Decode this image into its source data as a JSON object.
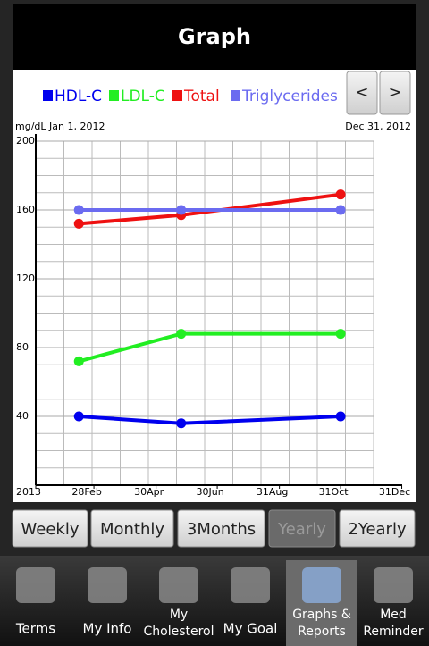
{
  "header": {
    "title": "Graph"
  },
  "nav_buttons": [
    "<",
    ">"
  ],
  "chart_data": {
    "type": "line",
    "y_label": "mg/dL",
    "start_label": "Jan 1, 2012",
    "end_label": "Dec 31, 2012",
    "x": [
      43,
      145,
      304
    ],
    "xlim": [
      0,
      365
    ],
    "xticks": [
      {
        "value": 0,
        "label": "2013"
      },
      {
        "value": 58,
        "label": "28Feb"
      },
      {
        "value": 120,
        "label": "30Apr"
      },
      {
        "value": 181,
        "label": "30Jun"
      },
      {
        "value": 243,
        "label": "31Aug"
      },
      {
        "value": 304,
        "label": "31Oct"
      },
      {
        "value": 365,
        "label": "31Dec"
      }
    ],
    "ylim": [
      0,
      200
    ],
    "yticks": [
      40,
      80,
      120,
      160,
      200
    ],
    "grid": true,
    "legend": "top",
    "series": [
      {
        "name": "HDL-C",
        "color": "#0000ee",
        "values": [
          40,
          36,
          40
        ]
      },
      {
        "name": "LDL-C",
        "color": "#22ee22",
        "values": [
          72,
          88,
          88
        ]
      },
      {
        "name": "Total",
        "color": "#ee1111",
        "values": [
          152,
          157,
          169
        ]
      },
      {
        "name": "Triglycerides",
        "color": "#6b6bf0",
        "values": [
          160,
          160,
          160
        ]
      }
    ]
  },
  "range_buttons": {
    "items": [
      "Weekly",
      "Monthly",
      "3Months",
      "Yearly",
      "2Yearly"
    ],
    "selected": 3
  },
  "tabs": {
    "items": [
      [
        "Terms"
      ],
      [
        "My Info"
      ],
      [
        "My",
        "Cholesterol"
      ],
      [
        "My Goal"
      ],
      [
        "Graphs &",
        "Reports"
      ],
      [
        "Med",
        "Reminder"
      ]
    ],
    "selected": 4
  }
}
